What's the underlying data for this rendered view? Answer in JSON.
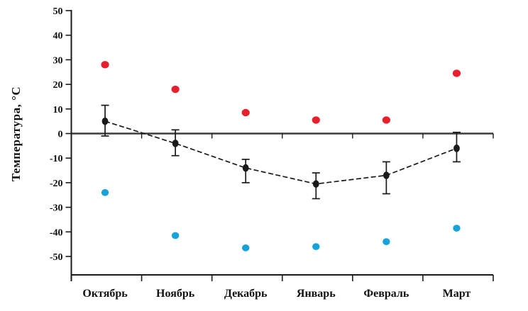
{
  "figure": {
    "background": "#ffffff"
  },
  "chart_data": {
    "type": "line",
    "title": "",
    "xlabel": "",
    "ylabel": "Температура, °С",
    "categories": [
      "Октябрь",
      "Ноябрь",
      "Декабрь",
      "Январь",
      "Февраль",
      "Март"
    ],
    "y_ticks": [
      "50",
      "40",
      "30",
      "20",
      "10",
      "0",
      "-10",
      "-20",
      "-30",
      "-40",
      "-50"
    ],
    "ylim": [
      -50,
      50
    ],
    "grid": "off",
    "legend": "none",
    "zero_baseline": true,
    "series": [
      {
        "name": "red-dots-upper",
        "marker": "circle",
        "color": "#e8202e",
        "line": "none",
        "values": [
          28,
          18,
          8.5,
          5.5,
          5.5,
          24.5
        ]
      },
      {
        "name": "black-line-with-error-bars",
        "marker": "circle",
        "color": "#1a1a1a",
        "line": "dashed",
        "values": [
          5,
          -4,
          -14,
          -20.5,
          -17,
          -6
        ],
        "error_top": [
          11.5,
          1.5,
          -10.5,
          -16,
          -11.5,
          0.5
        ],
        "error_bottom": [
          -1,
          -9,
          -20,
          -26.5,
          -24.5,
          -11.5
        ]
      },
      {
        "name": "blue-dots-lower",
        "marker": "circle",
        "color": "#18a2dc",
        "line": "none",
        "values": [
          -24,
          -41.5,
          -46.5,
          -46,
          -44,
          -38.5
        ]
      }
    ]
  },
  "colors": {
    "axis": "#1a1a1a",
    "zero_line": "#3d3d3d",
    "text": "#111111",
    "red": "#e8202e",
    "blue": "#18a2dc",
    "black": "#1a1a1a"
  }
}
